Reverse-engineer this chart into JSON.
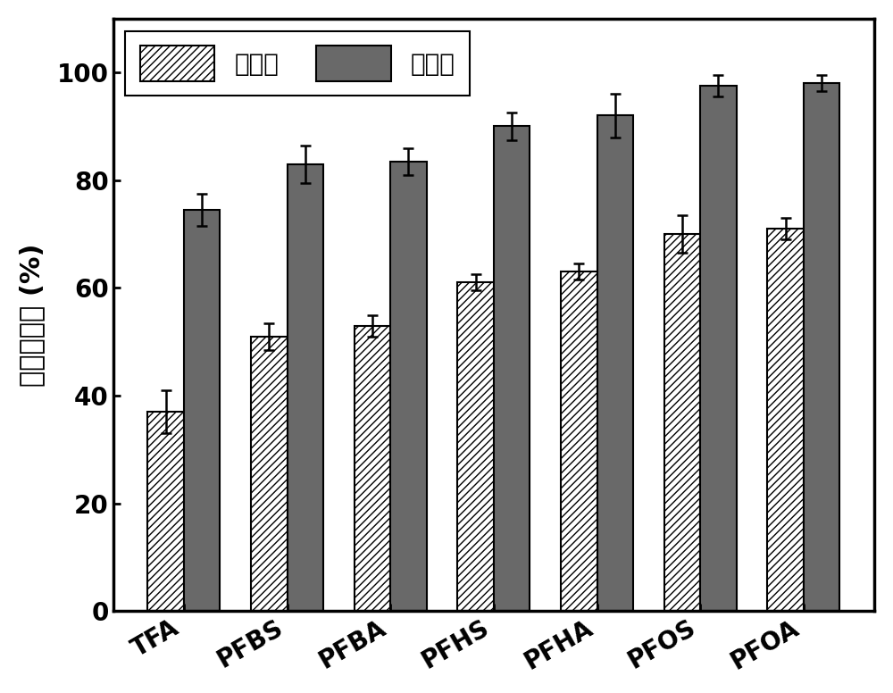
{
  "categories": [
    "TFA",
    "PFBS",
    "PFBA",
    "PFHS",
    "PFHA",
    "PFOS",
    "PFOA"
  ],
  "before_values": [
    37,
    51,
    53,
    61,
    63,
    70,
    71
  ],
  "after_values": [
    74.5,
    83,
    83.5,
    90,
    92,
    97.5,
    98
  ],
  "before_errors": [
    4,
    2.5,
    2,
    1.5,
    1.5,
    3.5,
    2
  ],
  "after_errors": [
    3,
    3.5,
    2.5,
    2.5,
    4,
    2,
    1.5
  ],
  "after_color": "#696969",
  "hatch_pattern": "////",
  "ylabel": "吸附去除率 (%)",
  "legend_before": "改性前",
  "legend_after": "改性后",
  "ylim": [
    0,
    110
  ],
  "yticks": [
    0,
    20,
    40,
    60,
    80,
    100
  ],
  "bar_width": 0.35,
  "figsize": [
    10.0,
    7.76
  ],
  "dpi": 100,
  "background_color": "#ffffff",
  "edge_color": "#000000",
  "tick_fontsize": 20,
  "label_fontsize": 22,
  "legend_fontsize": 20,
  "capsize": 4
}
